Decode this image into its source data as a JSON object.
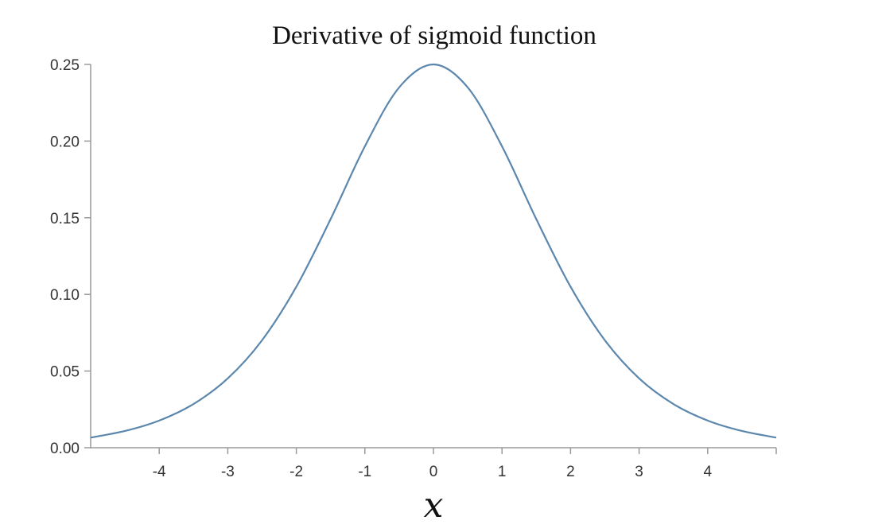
{
  "chart_data": {
    "type": "line",
    "title": "Derivative of sigmoid function",
    "xlabel": "x",
    "ylabel": "",
    "xlim": [
      -5,
      5
    ],
    "ylim": [
      0,
      0.25
    ],
    "xticks": [
      "-4",
      "-3",
      "-2",
      "-1",
      "0",
      "1",
      "2",
      "3",
      "4"
    ],
    "yticks": [
      "0.00",
      "0.05",
      "0.10",
      "0.15",
      "0.20",
      "0.25"
    ],
    "grid": false,
    "legend": "none",
    "line_color": "#5b87ad",
    "series": [
      {
        "x": [
          -5,
          -4.5,
          -4,
          -3.5,
          -3,
          -2.5,
          -2,
          -1.5,
          -1,
          -0.5,
          0,
          0.5,
          1,
          1.5,
          2,
          2.5,
          3,
          3.5,
          4,
          4.5,
          5
        ],
        "values": [
          0.0066,
          0.0109,
          0.0177,
          0.0285,
          0.0452,
          0.0701,
          0.105,
          0.1491,
          0.1966,
          0.235,
          0.25,
          0.235,
          0.1966,
          0.1491,
          0.105,
          0.0701,
          0.0452,
          0.0285,
          0.0177,
          0.0109,
          0.0066
        ]
      }
    ]
  }
}
